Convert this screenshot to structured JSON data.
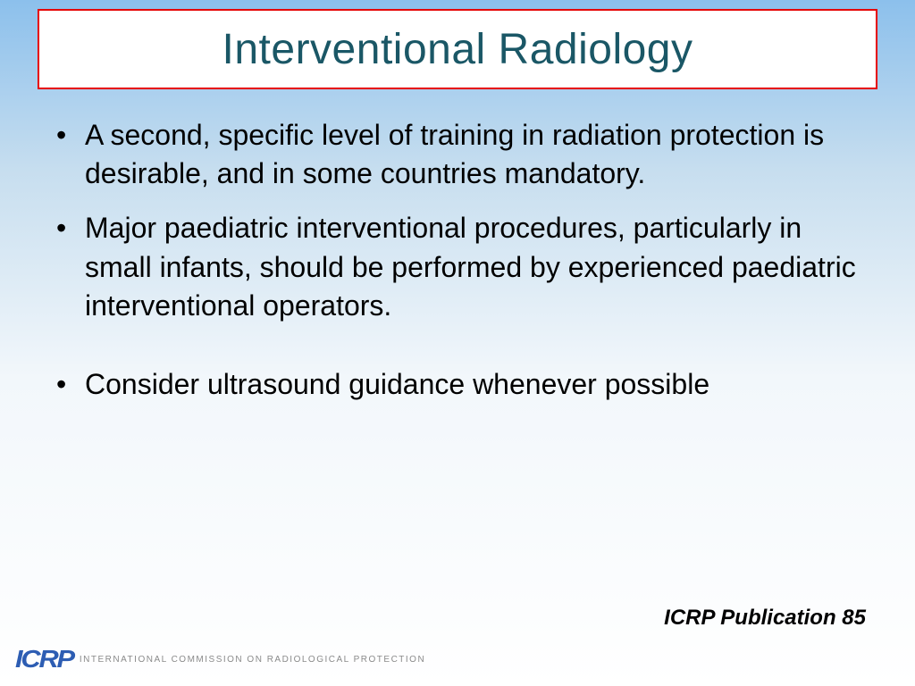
{
  "slide": {
    "title": "Interventional Radiology",
    "bullets": [
      "A second, specific level of training in radiation protection is desirable, and in some countries mandatory.",
      "Major paediatric interventional procedures, particularly in small infants, should be performed by experienced paediatric interventional operators.",
      "Consider ultrasound guidance whenever possible"
    ],
    "citation": "ICRP Publication 85"
  },
  "branding": {
    "logo_text": "ICRP",
    "logo_subtitle": "INTERNATIONAL COMMISSION ON RADIOLOGICAL PROTECTION"
  },
  "style": {
    "title_color": "#1a5766",
    "title_border": "#e60000",
    "title_bg": "#ffffff",
    "body_text_color": "#000000",
    "logo_color": "#2d5db3",
    "logo_sub_color": "#8a8a8a",
    "bg_gradient_top": "#8cc0ec",
    "bg_gradient_bottom": "#ffffff",
    "title_fontsize": 48,
    "body_fontsize": 32,
    "citation_fontsize": 24
  }
}
